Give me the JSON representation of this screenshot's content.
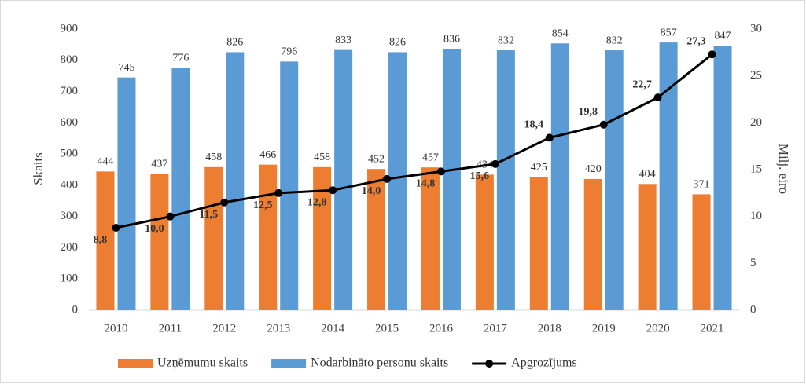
{
  "chart_data": {
    "type": "bar",
    "categories": [
      "2010",
      "2011",
      "2012",
      "2013",
      "2014",
      "2015",
      "2016",
      "2017",
      "2018",
      "2019",
      "2020",
      "2021"
    ],
    "series": [
      {
        "name": "Uzņēmumu skaits",
        "color": "#ed7d31",
        "values": [
          444,
          437,
          458,
          466,
          458,
          452,
          457,
          434,
          425,
          420,
          404,
          371
        ]
      },
      {
        "name": "Nodarbināto personu skaits",
        "color": "#5b9bd5",
        "values": [
          745,
          776,
          826,
          796,
          833,
          826,
          836,
          832,
          854,
          832,
          857,
          847
        ]
      },
      {
        "name": "Apgrozījums",
        "color": "#000000",
        "type": "line",
        "axis": "y2",
        "values": [
          8.8,
          10.0,
          11.5,
          12.5,
          12.8,
          14.0,
          14.8,
          15.6,
          18.4,
          19.8,
          22.7,
          27.3
        ],
        "value_labels": [
          "8,8",
          "10,0",
          "11,5",
          "12,5",
          "12,8",
          "14,0",
          "14,8",
          "15,6",
          "18,4",
          "19,8",
          "22,7",
          "27,3"
        ]
      }
    ],
    "ylabel": "Skaits",
    "y2label": "Milj. eiro",
    "ylim": [
      0,
      900
    ],
    "yticks": [
      0,
      100,
      200,
      300,
      400,
      500,
      600,
      700,
      800,
      900
    ],
    "y2lim": [
      0,
      30
    ],
    "y2ticks": [
      0,
      5,
      10,
      15,
      20,
      25,
      30
    ],
    "legend": "bottom"
  }
}
